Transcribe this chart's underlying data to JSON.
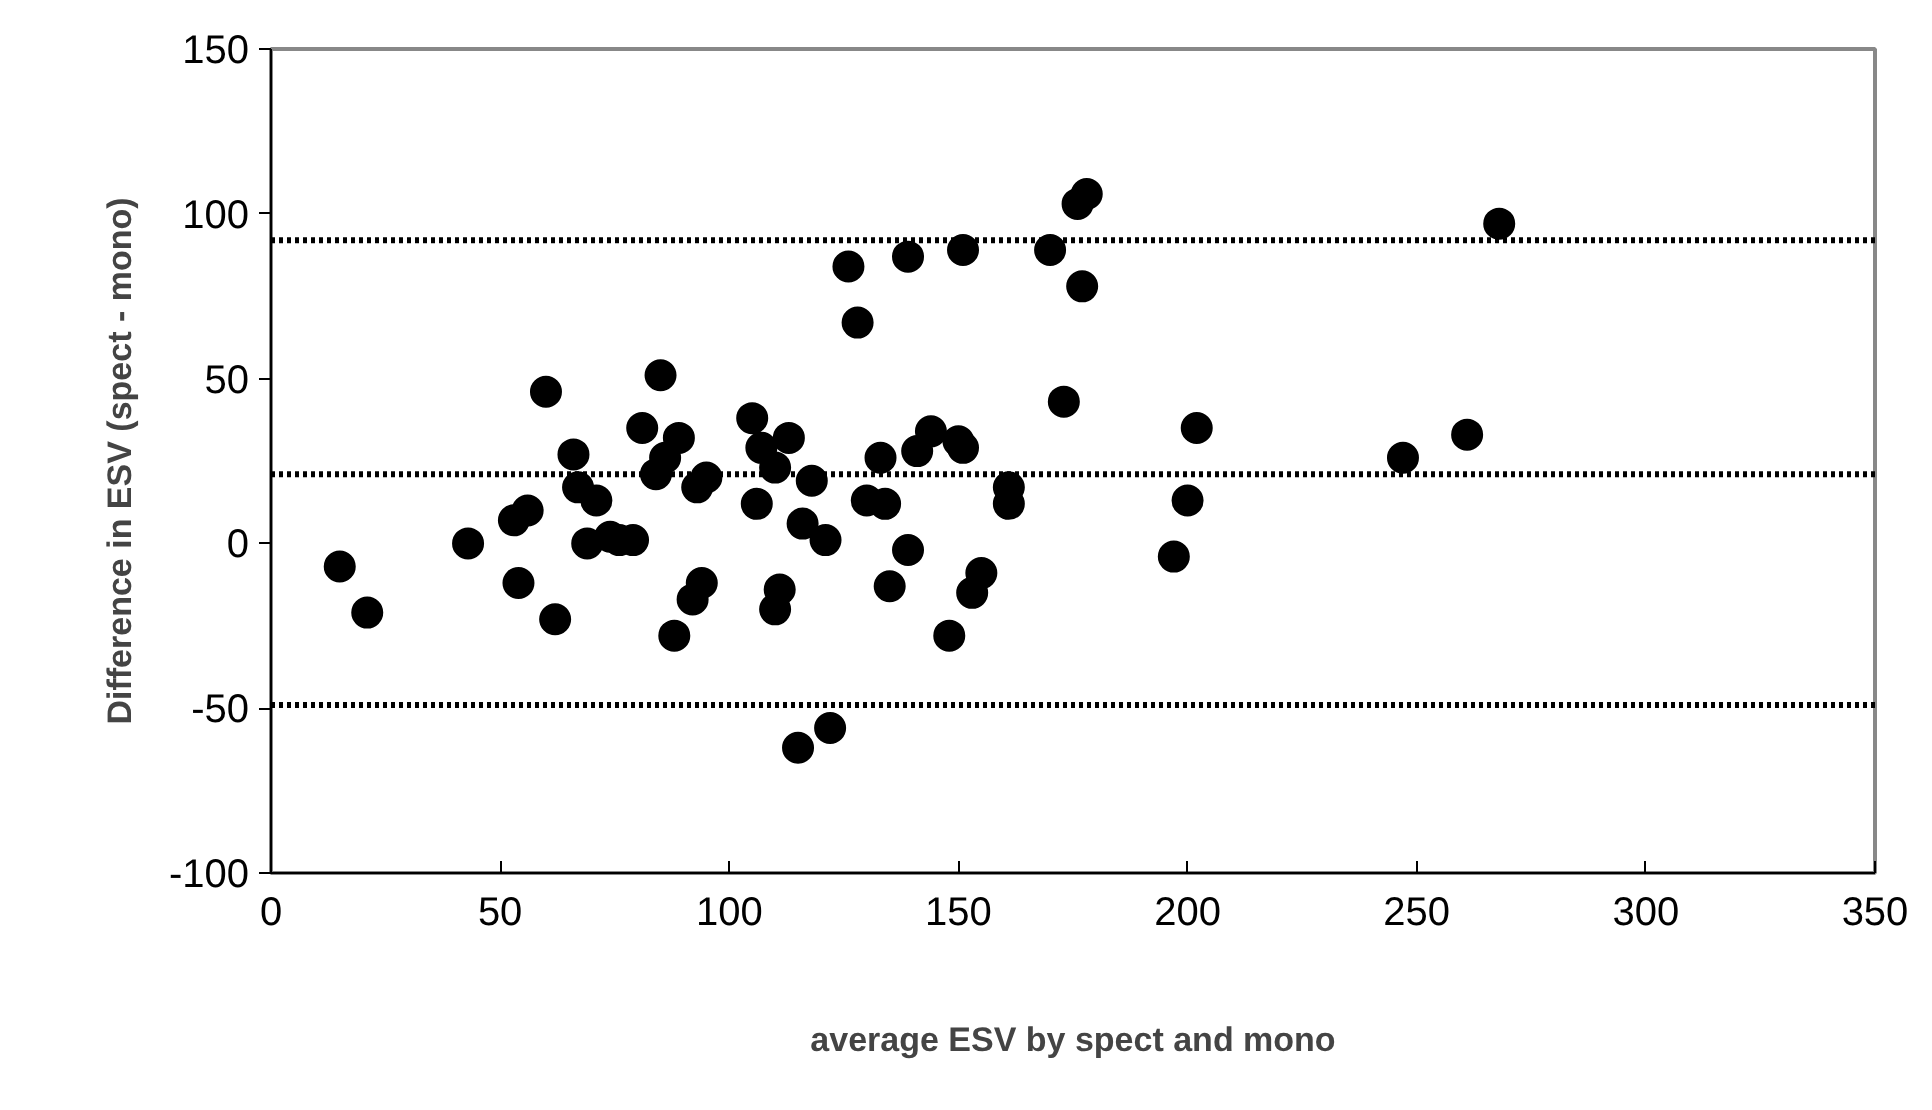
{
  "chart_data": {
    "type": "scatter",
    "xlabel": "average ESV by spect and mono",
    "ylabel": "Difference in ESV (spect - mono)",
    "xlim": [
      0,
      350
    ],
    "xticks": [
      0,
      50,
      100,
      150,
      200,
      250,
      300,
      350
    ],
    "ylim": [
      -100,
      150
    ],
    "yticks": [
      -100,
      -50,
      0,
      50,
      100,
      150
    ],
    "grid": false,
    "marker": "circle",
    "x": [
      15,
      21,
      43,
      53,
      54,
      56,
      60,
      62,
      66,
      67,
      69,
      71,
      74,
      76,
      79,
      81,
      84,
      85,
      86,
      88,
      89,
      92,
      93,
      94,
      95,
      105,
      106,
      107,
      110,
      110,
      111,
      113,
      115,
      116,
      118,
      121,
      122,
      126,
      128,
      130,
      133,
      134,
      135,
      139,
      139,
      141,
      144,
      148,
      150,
      151,
      151,
      153,
      155,
      161,
      161,
      170,
      173,
      176,
      177,
      178,
      197,
      200,
      202,
      247,
      261,
      268
    ],
    "series": [
      {
        "color": "#000000",
        "values": [
          -7,
          -21,
          0,
          7,
          -12,
          10,
          46,
          -23,
          27,
          17,
          0,
          13,
          2,
          1,
          1,
          35,
          21,
          51,
          26,
          -28,
          32,
          -17,
          17,
          -12,
          20,
          38,
          12,
          29,
          -20,
          23,
          -14,
          32,
          -62,
          6,
          19,
          1,
          -56,
          84,
          67,
          13,
          26,
          12,
          -13,
          -2,
          87,
          28,
          34,
          -28,
          31,
          89,
          29,
          -15,
          -9,
          17,
          12,
          89,
          43,
          103,
          78,
          106,
          -4,
          13,
          35,
          26,
          33,
          97
        ]
      }
    ],
    "ref_lines": [
      {
        "axis": "y",
        "value": 92,
        "color": "#000000",
        "line_style": "dotted"
      },
      {
        "axis": "y",
        "value": 21,
        "color": "#000000",
        "line_style": "dotted"
      },
      {
        "axis": "y",
        "value": -49,
        "color": "#000000",
        "line_style": "dotted"
      }
    ]
  }
}
